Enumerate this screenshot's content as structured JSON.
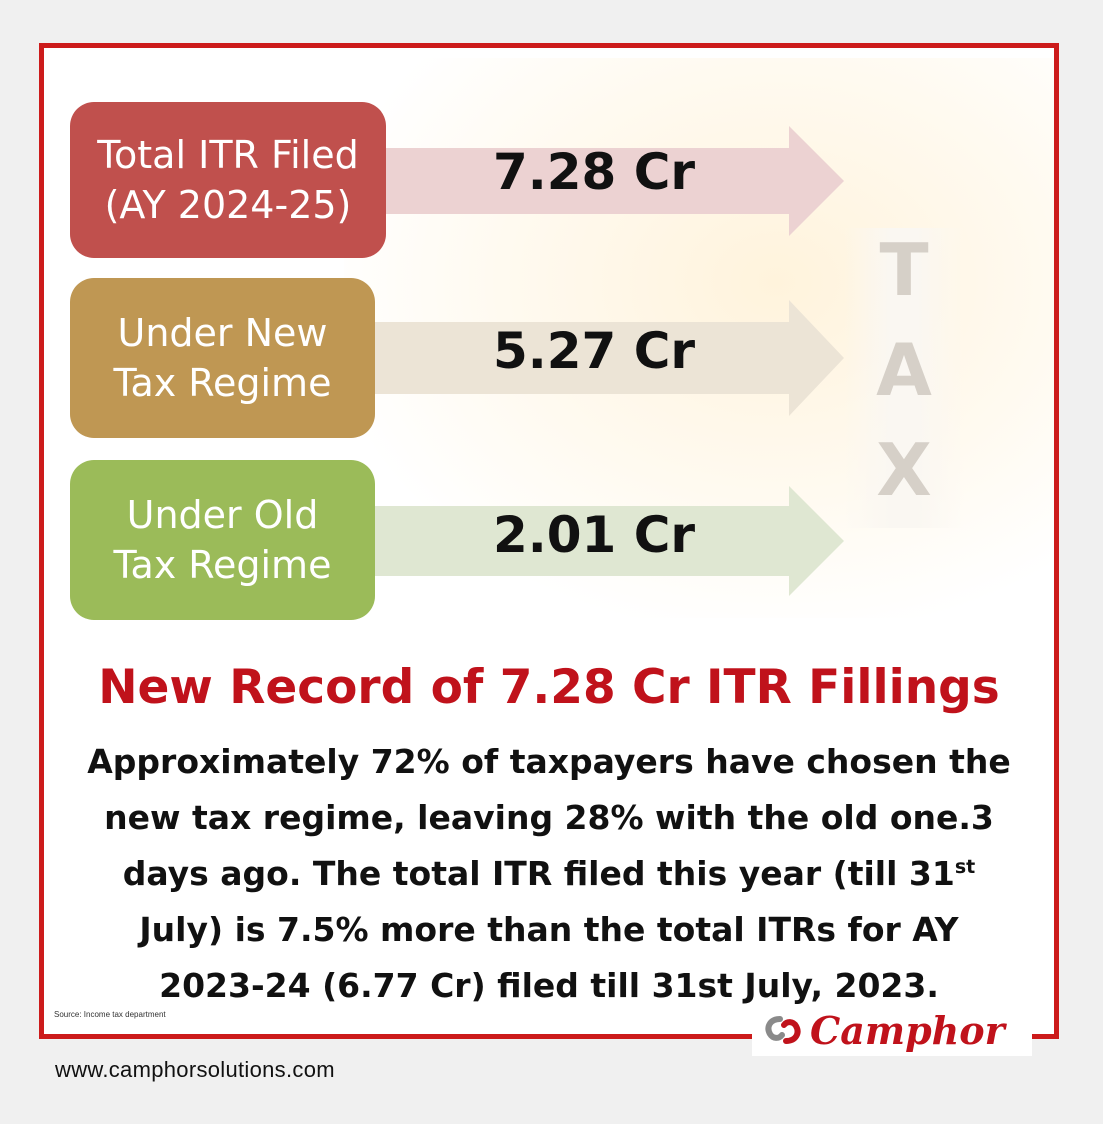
{
  "rows": [
    {
      "label_line1": "Total ITR Filed",
      "label_line2": "(AY 2024-25)",
      "value": "7.28 Cr",
      "box_color": "#c0504d",
      "arrow_color": "#ecd2d2"
    },
    {
      "label_line1": "Under New",
      "label_line2": "Tax Regime",
      "value": "5.27 Cr",
      "box_color": "#bf9753",
      "arrow_color": "#ece4d6"
    },
    {
      "label_line1": "Under Old",
      "label_line2": "Tax Regime",
      "value": "2.01 Cr",
      "box_color": "#9bbb59",
      "arrow_color": "#dfe7d2"
    }
  ],
  "tax_letters": [
    "T",
    "A",
    "X"
  ],
  "headline": "New Record of 7.28 Cr ITR Fillings",
  "body": {
    "line1": "Approximately 72% of taxpayers have chosen the",
    "line2": "new tax regime, leaving 28% with the old one.3",
    "line3": "days ago. The total ITR filed this year (till 31",
    "line3_sup": "st",
    "line4": "July) is 7.5% more than the total ITRs for AY",
    "line5": "2023-24 (6.77 Cr) filed till 31st July, 2023."
  },
  "source": "Source: Income tax department",
  "brand": {
    "name": "Camphor",
    "icon": "camphor-logo-icon",
    "color": "#c0121b"
  },
  "website": "www.camphorsolutions.com",
  "frame_color": "#cc1b1b"
}
